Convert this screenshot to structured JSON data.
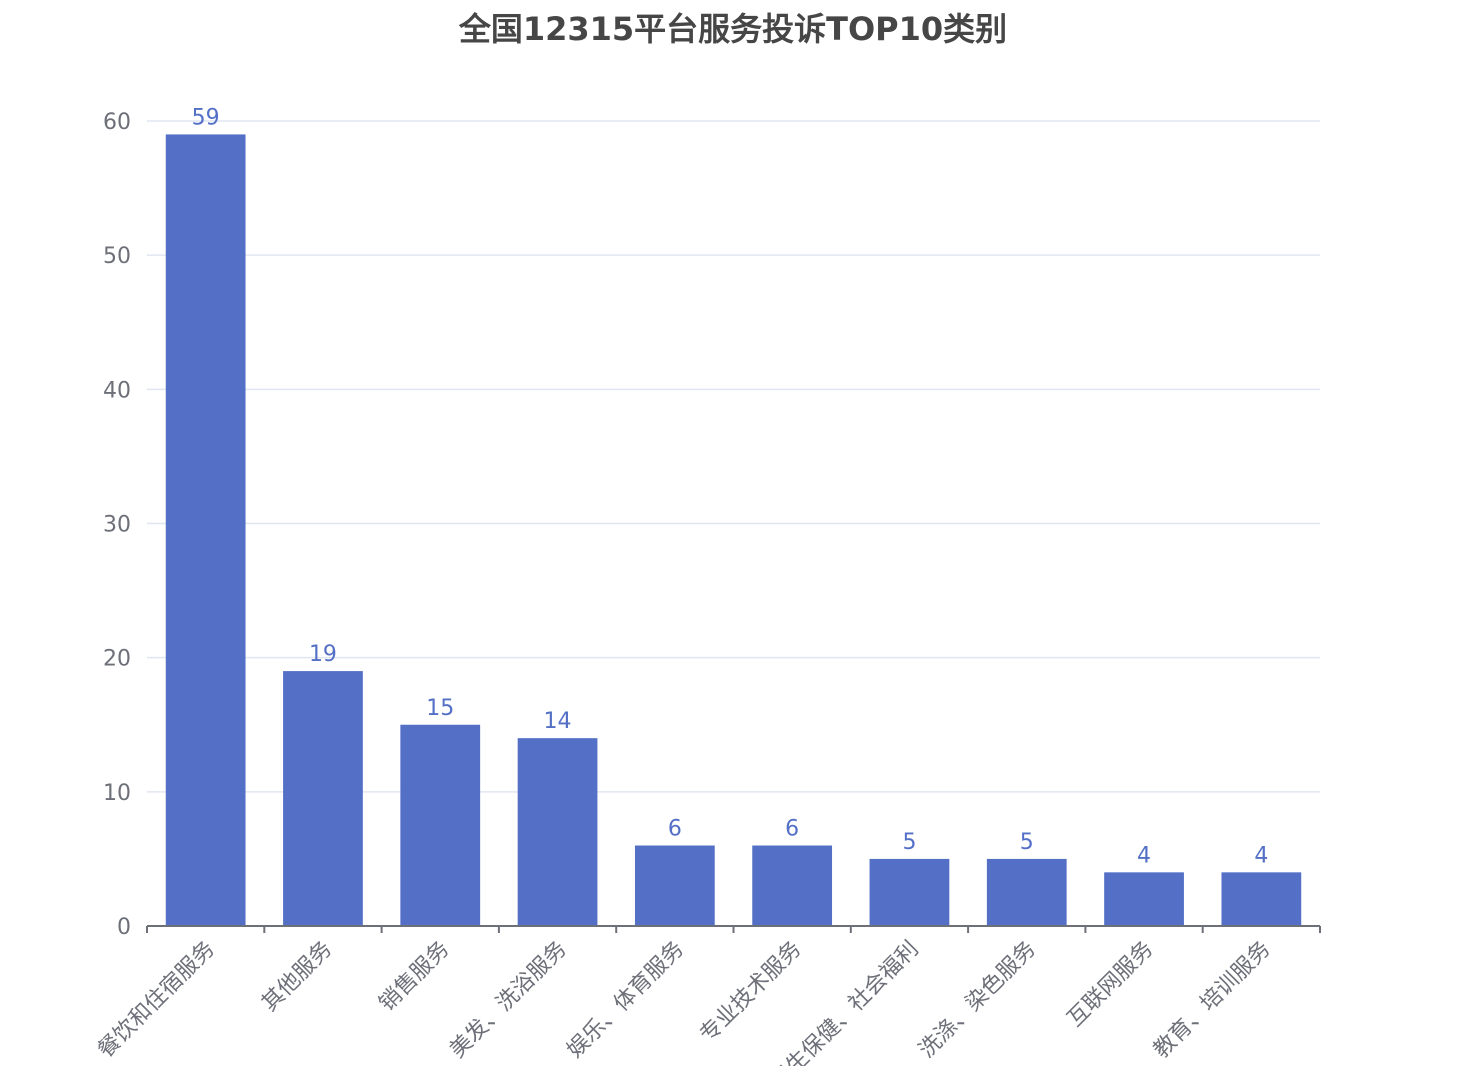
{
  "chart_data": {
    "type": "bar",
    "title": "全国12315平台服务投诉TOP10类别",
    "categories": [
      "餐饮和住宿服务",
      "其他服务",
      "销售服务",
      "美发、洗浴服务",
      "娱乐、体育服务",
      "专业技术服务",
      "卫生保健、社会福利",
      "洗涤、染色服务",
      "互联网服务",
      "教育、培训服务"
    ],
    "values": [
      59,
      19,
      15,
      14,
      6,
      6,
      5,
      5,
      4,
      4
    ],
    "ylim": [
      0,
      60
    ],
    "yticks": [
      0,
      10,
      20,
      30,
      40,
      50,
      60
    ],
    "xlabel": "",
    "ylabel": "",
    "grid": true,
    "legend": "none",
    "colors": {
      "bar": "#5470c6",
      "data_label": "#5470c6",
      "axis": "#6e7079",
      "grid": "#e0e6f1",
      "title": "#464646"
    }
  }
}
